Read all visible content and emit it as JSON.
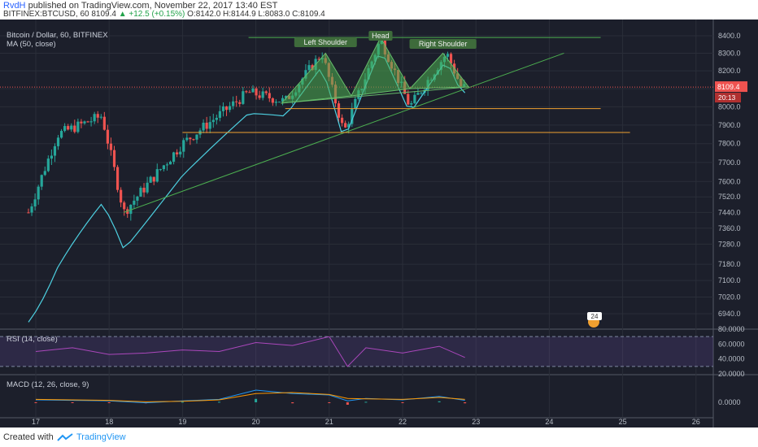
{
  "header": {
    "author": "RvdH",
    "published_text": " published on TradingView.com, November 22, 2017 13:40 EST",
    "symbol": "BITFINEX:BTCUSD, 60",
    "last": "8109.4",
    "change": "▲ +12.5 (+0.15%)",
    "ohlc": "O:8142.0 H:8144.9 L:8083.0 C:8109.4"
  },
  "legends": {
    "main": "Bitcoin / Dollar, 60, BITFINEX",
    "ma": "MA (50, close)",
    "rsi": "RSI (14, close)",
    "macd": "MACD (12, 26, close, 9)"
  },
  "annotations": {
    "left_shoulder": "Left Shoulder",
    "head": "Head",
    "right_shoulder": "Right Shoulder",
    "countdown": "20:13",
    "event_badge": "24"
  },
  "footer": {
    "created": "Created with",
    "brand": "TradingView"
  },
  "colors": {
    "up": "#26a69a",
    "down": "#ef5350",
    "ma": "#4dd0e1",
    "trend": "#4caf50",
    "level": "#f0a030",
    "rsi": "#ab47bc",
    "macd": "#2196f3",
    "signal": "#ff9800"
  },
  "chart_data": [
    {
      "type": "candlestick",
      "title": "Bitcoin / Dollar, 60, BITFINEX",
      "x_ticks": [
        "17",
        "18",
        "19",
        "20",
        "21",
        "22",
        "23",
        "24",
        "25",
        "26"
      ],
      "y_ticks": [
        "8400.0",
        "8300.0",
        "8200.0",
        "8100.0",
        "8000.0",
        "7900.0",
        "7800.0",
        "7700.0",
        "7600.0",
        "7520.0",
        "7440.0",
        "7360.0",
        "7280.0",
        "7180.0",
        "7100.0",
        "7020.0",
        "6940.0"
      ],
      "y_axis": "log",
      "ylim": [
        6880,
        8480
      ],
      "last_price": "8109.4",
      "key_closes": [
        {
          "x": "16.9",
          "y": 7440
        },
        {
          "x": "17.3",
          "y": 7850
        },
        {
          "x": "17.9",
          "y": 7950
        },
        {
          "x": "18.2",
          "y": 7440
        },
        {
          "x": "19.0",
          "y": 7800
        },
        {
          "x": "19.9",
          "y": 8080
        },
        {
          "x": "20.4",
          "y": 8030
        },
        {
          "x": "20.9",
          "y": 8300
        },
        {
          "x": "21.2",
          "y": 7860
        },
        {
          "x": "21.7",
          "y": 8380
        },
        {
          "x": "22.1",
          "y": 8000
        },
        {
          "x": "22.6",
          "y": 8300
        },
        {
          "x": "22.8",
          "y": 8109.4
        }
      ],
      "series": [
        {
          "name": "MA (50, close)",
          "start": 6900,
          "end": 8190
        }
      ],
      "trendlines": [
        {
          "from": {
            "x": "18.2",
            "y": 7440
          },
          "to": {
            "x": "24.2",
            "y": 8300
          }
        },
        {
          "from": {
            "x": "19.9",
            "y": 8390
          },
          "to": {
            "x": "24.7",
            "y": 8390
          }
        }
      ],
      "horizontal_levels": [
        7990,
        7860
      ],
      "pattern": "head and shoulders"
    },
    {
      "type": "line",
      "title": "RSI (14, close)",
      "y_ticks": [
        "80.0000",
        "60.0000",
        "40.0000",
        "20.0000"
      ],
      "ylim": [
        20,
        80
      ],
      "bands": [
        70,
        30
      ],
      "x": [
        "17.0",
        "17.5",
        "18.0",
        "18.5",
        "19.0",
        "19.5",
        "20.0",
        "20.5",
        "21.0",
        "21.25",
        "21.5",
        "22.0",
        "22.5",
        "22.85"
      ],
      "values": [
        50,
        55,
        46,
        48,
        52,
        50,
        62,
        58,
        70,
        30,
        55,
        48,
        57,
        42
      ]
    },
    {
      "type": "line",
      "title": "MACD (12, 26, close, 9)",
      "y_ticks": [
        "0.0000"
      ],
      "x": [
        "17.0",
        "17.5",
        "18.0",
        "18.5",
        "19.0",
        "19.5",
        "20.0",
        "20.5",
        "21.0",
        "21.25",
        "21.5",
        "22.0",
        "22.5",
        "22.85"
      ],
      "series": [
        {
          "name": "MACD",
          "values": [
            5,
            4,
            3,
            -1,
            3,
            6,
            25,
            18,
            15,
            3,
            8,
            5,
            12,
            4
          ]
        },
        {
          "name": "Signal",
          "values": [
            6,
            5,
            4,
            1,
            2,
            5,
            18,
            20,
            16,
            8,
            7,
            6,
            10,
            6
          ]
        }
      ]
    }
  ]
}
